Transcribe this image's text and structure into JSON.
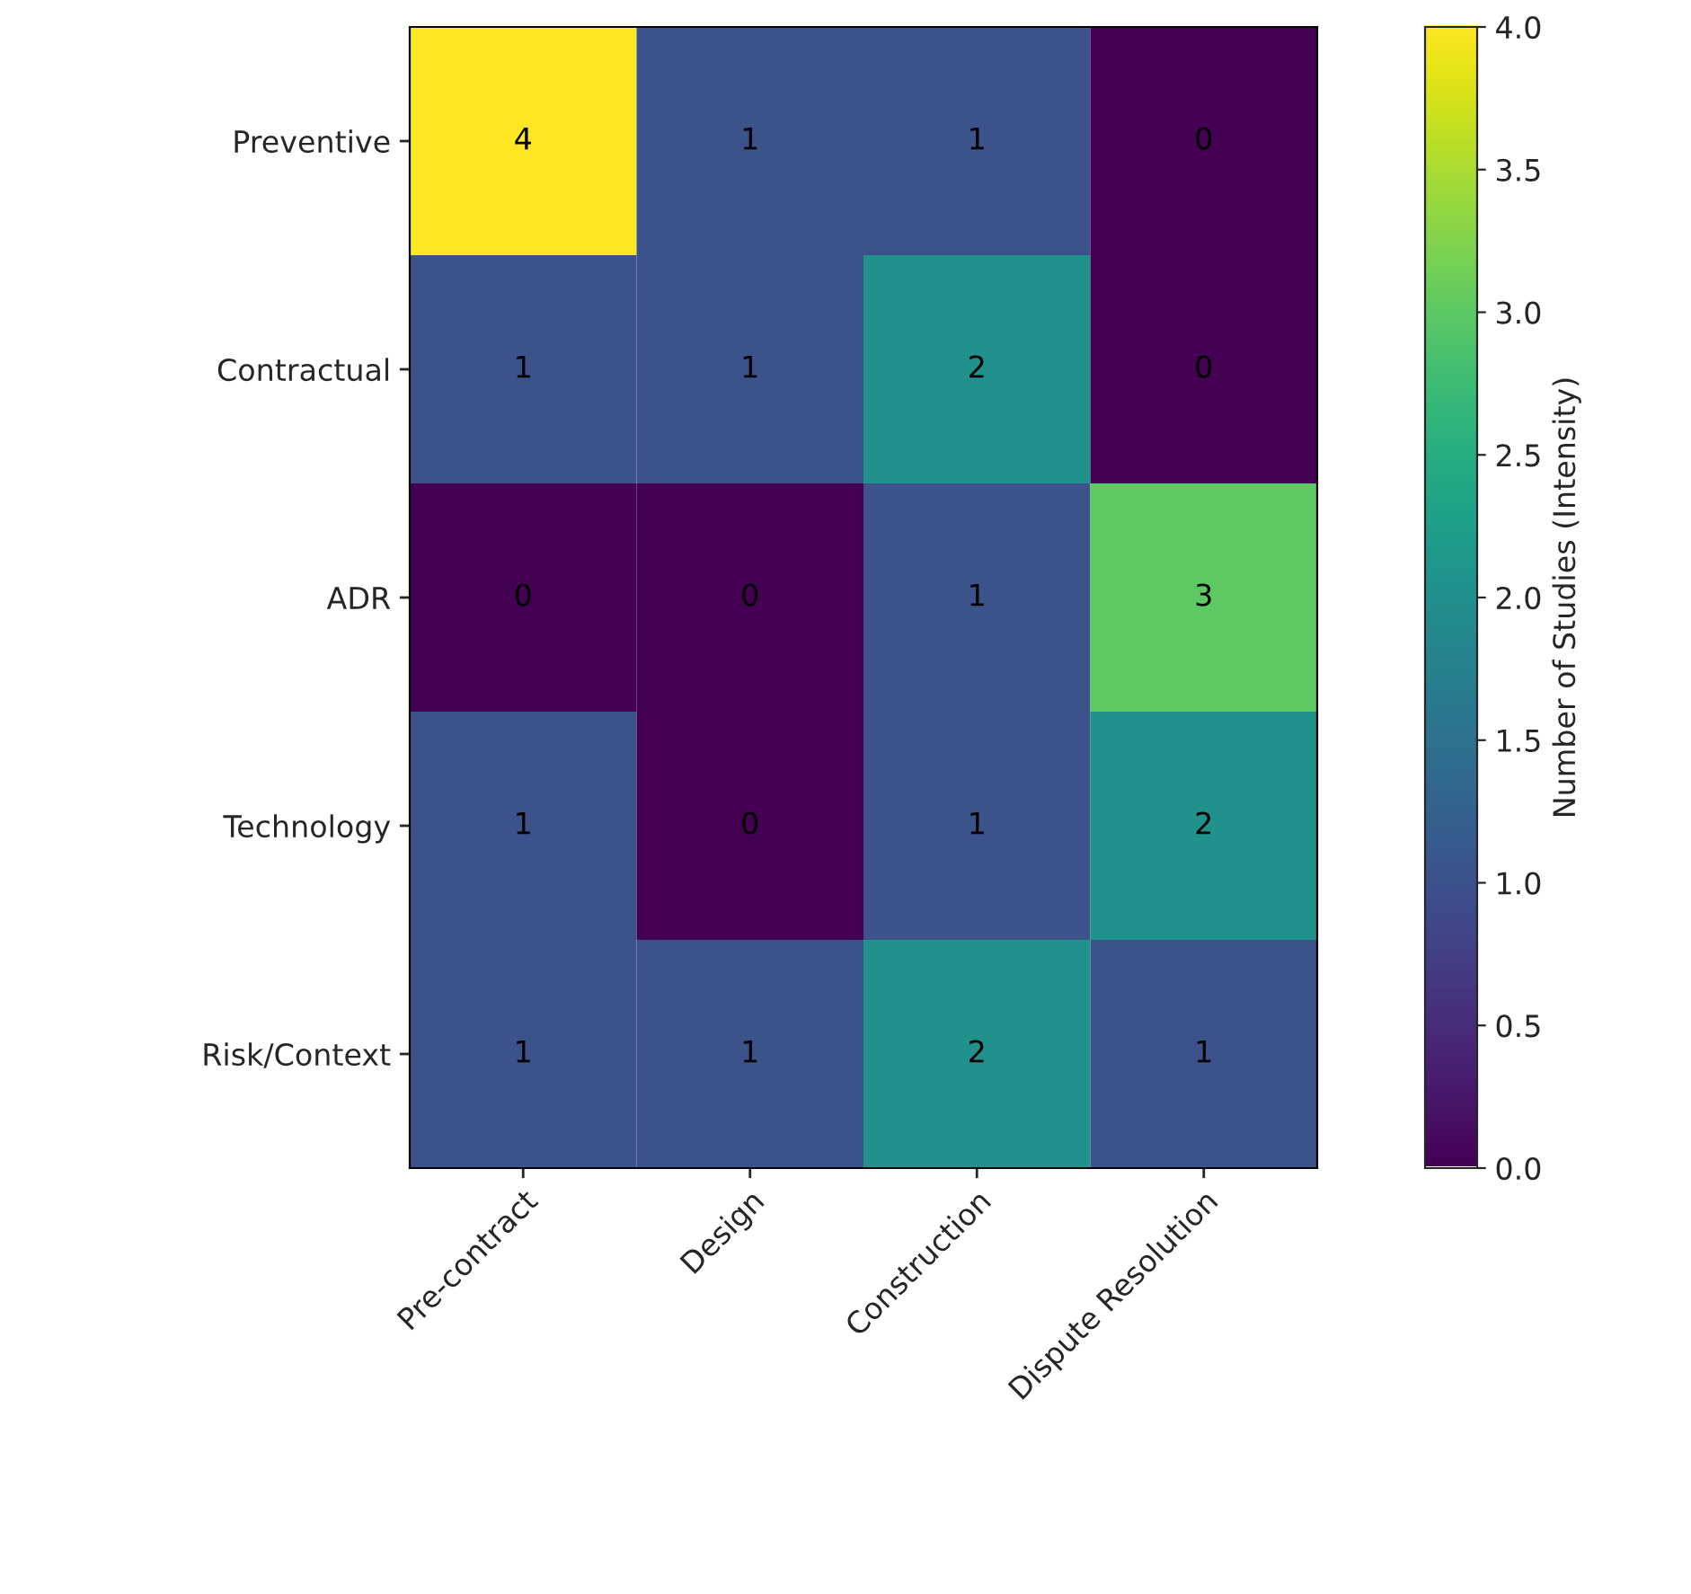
{
  "chart_data": {
    "type": "heatmap",
    "categories": [
      "Pre-contract",
      "Design",
      "Construction",
      "Dispute Resolution"
    ],
    "y_categories": [
      "Preventive",
      "Contractual",
      "ADR",
      "Technology",
      "Risk/Context"
    ],
    "cells": [
      [
        4,
        1,
        1,
        0
      ],
      [
        1,
        1,
        2,
        0
      ],
      [
        0,
        0,
        1,
        3
      ],
      [
        1,
        0,
        1,
        2
      ],
      [
        1,
        1,
        2,
        1
      ]
    ],
    "data_labels": true,
    "clabel": "Number of Studies (Intensity)",
    "clim": [
      0,
      4
    ],
    "cticks": [
      {
        "value": 0,
        "label": "0.0"
      },
      {
        "value": 0.5,
        "label": "0.5"
      },
      {
        "value": 1,
        "label": "1.0"
      },
      {
        "value": 1.5,
        "label": "1.5"
      },
      {
        "value": 2,
        "label": "2.0"
      },
      {
        "value": 2.5,
        "label": "2.5"
      },
      {
        "value": 3,
        "label": "3.0"
      },
      {
        "value": 3.5,
        "label": "3.5"
      },
      {
        "value": 4,
        "label": "4.0"
      }
    ]
  }
}
